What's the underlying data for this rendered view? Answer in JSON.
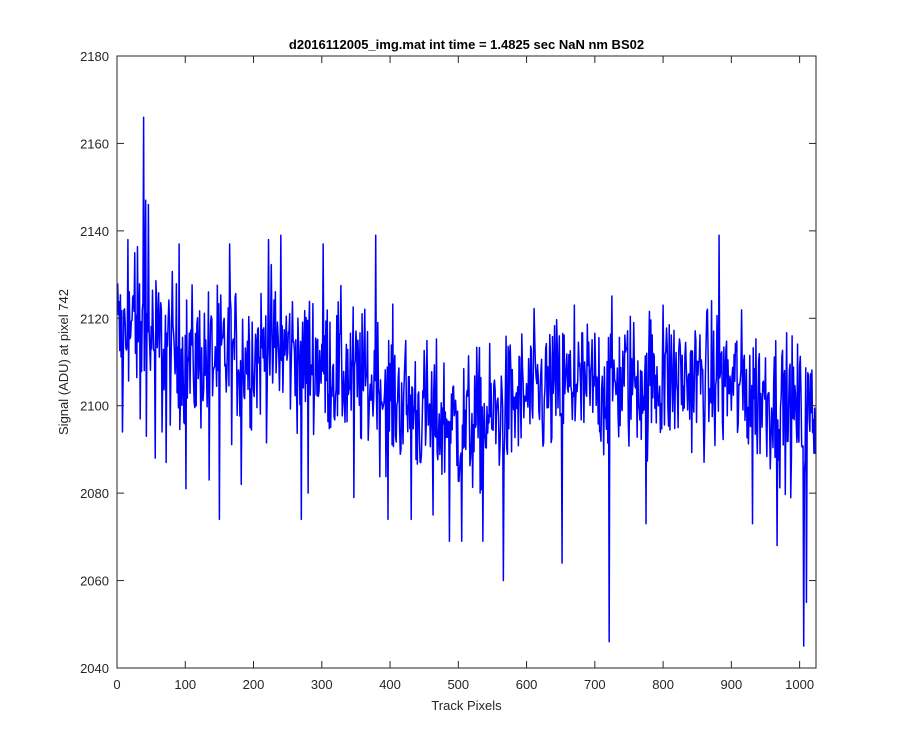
{
  "chart_data": {
    "type": "line",
    "title": "d2016112005_img.mat int time = 1.4825 sec  NaN nm BS02",
    "xlabel": "Track Pixels",
    "ylabel": "Signal (ADU) at pixel 742",
    "xlim": [
      0,
      1024
    ],
    "ylim": [
      2040,
      2180
    ],
    "xticks": [
      0,
      100,
      200,
      300,
      400,
      500,
      600,
      700,
      800,
      900,
      1000
    ],
    "yticks": [
      2040,
      2060,
      2080,
      2100,
      2120,
      2140,
      2160,
      2180
    ],
    "xtick_labels": [
      "0",
      "100",
      "200",
      "300",
      "400",
      "500",
      "600",
      "700",
      "800",
      "900",
      "1000"
    ],
    "ytick_labels": [
      "2040",
      "2060",
      "2080",
      "2100",
      "2120",
      "2140",
      "2160",
      "2180"
    ],
    "grid": false,
    "line_color": "#0000ff",
    "frame_color": "#262626",
    "trend_points": [
      [
        0,
        2115
      ],
      [
        30,
        2118
      ],
      [
        60,
        2115
      ],
      [
        100,
        2110
      ],
      [
        150,
        2111
      ],
      [
        200,
        2112
      ],
      [
        250,
        2113
      ],
      [
        300,
        2110
      ],
      [
        350,
        2106
      ],
      [
        400,
        2103
      ],
      [
        450,
        2098
      ],
      [
        500,
        2095
      ],
      [
        550,
        2097
      ],
      [
        600,
        2102
      ],
      [
        650,
        2104
      ],
      [
        700,
        2104
      ],
      [
        750,
        2106
      ],
      [
        800,
        2106
      ],
      [
        850,
        2106
      ],
      [
        900,
        2105
      ],
      [
        950,
        2102
      ],
      [
        1000,
        2098
      ],
      [
        1024,
        2097
      ]
    ],
    "noise_amplitude": 8,
    "spikes": [
      {
        "x": 1,
        "y": 2128
      },
      {
        "x": 8,
        "y": 2094
      },
      {
        "x": 16,
        "y": 2138
      },
      {
        "x": 26,
        "y": 2135
      },
      {
        "x": 34,
        "y": 2097
      },
      {
        "x": 39,
        "y": 2166
      },
      {
        "x": 41,
        "y": 2128
      },
      {
        "x": 42,
        "y": 2147
      },
      {
        "x": 43,
        "y": 2093
      },
      {
        "x": 46,
        "y": 2146
      },
      {
        "x": 56,
        "y": 2088
      },
      {
        "x": 66,
        "y": 2094
      },
      {
        "x": 72,
        "y": 2087
      },
      {
        "x": 91,
        "y": 2137
      },
      {
        "x": 101,
        "y": 2081
      },
      {
        "x": 135,
        "y": 2083
      },
      {
        "x": 150,
        "y": 2074
      },
      {
        "x": 165,
        "y": 2137
      },
      {
        "x": 182,
        "y": 2082
      },
      {
        "x": 222,
        "y": 2138
      },
      {
        "x": 240,
        "y": 2139
      },
      {
        "x": 270,
        "y": 2074
      },
      {
        "x": 280,
        "y": 2080
      },
      {
        "x": 302,
        "y": 2137
      },
      {
        "x": 347,
        "y": 2079
      },
      {
        "x": 379,
        "y": 2139
      },
      {
        "x": 397,
        "y": 2074
      },
      {
        "x": 431,
        "y": 2074
      },
      {
        "x": 463,
        "y": 2075
      },
      {
        "x": 487,
        "y": 2069
      },
      {
        "x": 505,
        "y": 2069
      },
      {
        "x": 536,
        "y": 2069
      },
      {
        "x": 566,
        "y": 2060
      },
      {
        "x": 652,
        "y": 2064
      },
      {
        "x": 670,
        "y": 2123
      },
      {
        "x": 721,
        "y": 2046
      },
      {
        "x": 775,
        "y": 2073
      },
      {
        "x": 800,
        "y": 2123
      },
      {
        "x": 882,
        "y": 2139
      },
      {
        "x": 931,
        "y": 2073
      },
      {
        "x": 967,
        "y": 2068
      },
      {
        "x": 1006,
        "y": 2045
      },
      {
        "x": 1010,
        "y": 2055
      }
    ]
  }
}
